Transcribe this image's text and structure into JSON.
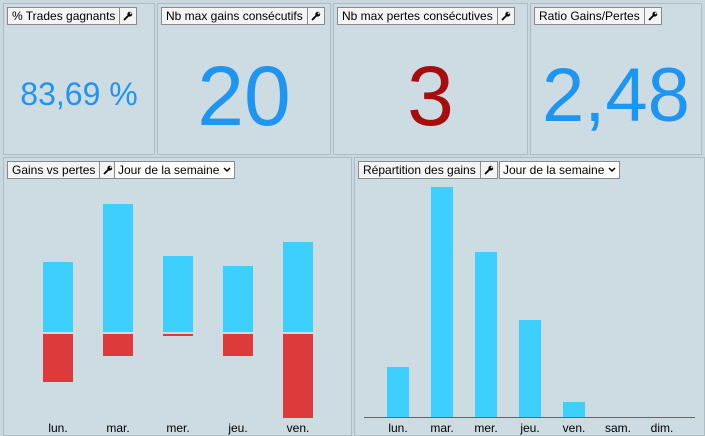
{
  "colors": {
    "gain": "#3dd0ff",
    "loss": "#dd3b3b",
    "kpi_blue": "#1e95f0",
    "kpi_red": "#a80d0d"
  },
  "kpis": [
    {
      "title": "% Trades gagnants",
      "value": "83,69 %"
    },
    {
      "title": "Nb max gains consécutifs",
      "value": "20"
    },
    {
      "title": "Nb max pertes consécutives",
      "value": "3"
    },
    {
      "title": "Ratio Gains/Pertes",
      "value": "2,48"
    }
  ],
  "icons": {
    "settings": "wrench-icon",
    "dropdown": "chevron-down-icon"
  },
  "gains_vs_pertes": {
    "title": "Gains vs pertes",
    "select_value": "Jour de la semaine",
    "chart_data": {
      "type": "bar",
      "categories": [
        "lun.",
        "mar.",
        "mer.",
        "jeu.",
        "ven."
      ],
      "series": [
        {
          "values": [
            70,
            128,
            76,
            66,
            90
          ]
        },
        {
          "values": [
            -48,
            -22,
            -2,
            -22,
            -84
          ]
        }
      ]
    }
  },
  "repartition": {
    "title": "Répartition des gains",
    "select_value": "Jour de la semaine",
    "chart_data": {
      "type": "bar",
      "categories": [
        "lun.",
        "mar.",
        "mer.",
        "jeu.",
        "ven.",
        "sam.",
        "dim."
      ],
      "values": [
        50,
        230,
        165,
        97,
        15,
        0,
        0
      ]
    }
  }
}
